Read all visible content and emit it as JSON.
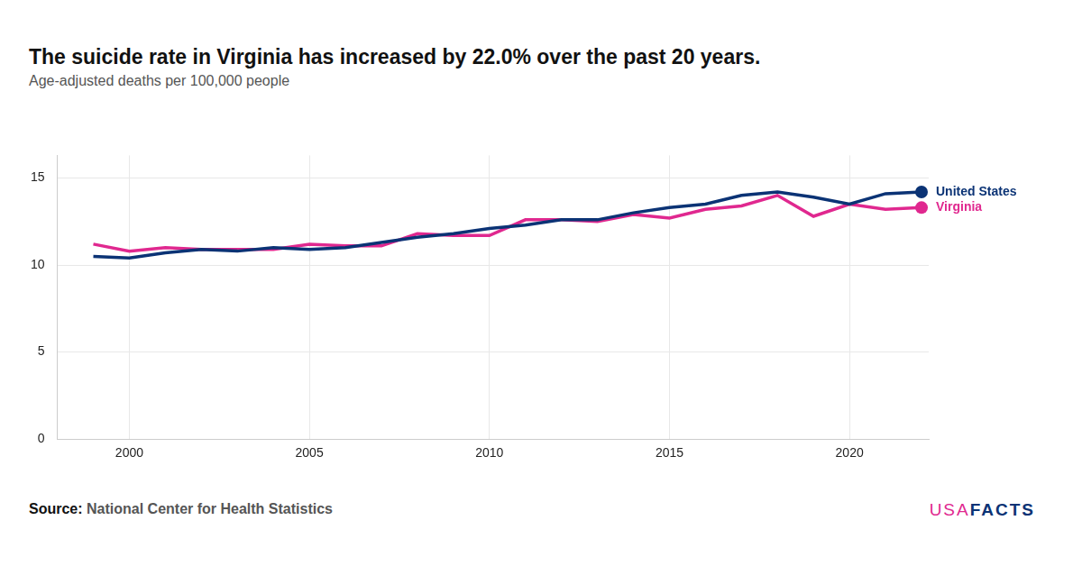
{
  "chart_data": {
    "type": "line",
    "title": "The suicide rate in Virginia has increased by 22.0% over the past 20 years.",
    "subtitle": "Age-adjusted deaths per 100,000 people",
    "source_label": "Source:",
    "source": "National Center for Health Statistics",
    "logo": [
      "USA",
      "FACTS"
    ],
    "x": [
      1999,
      2000,
      2001,
      2002,
      2003,
      2004,
      2005,
      2006,
      2007,
      2008,
      2009,
      2010,
      2011,
      2012,
      2013,
      2014,
      2015,
      2016,
      2017,
      2018,
      2019,
      2020,
      2021,
      2022
    ],
    "series": [
      {
        "name": "United States",
        "color": "#0b3375",
        "values": [
          10.5,
          10.4,
          10.7,
          10.9,
          10.8,
          11.0,
          10.9,
          11.0,
          11.3,
          11.6,
          11.8,
          12.1,
          12.3,
          12.6,
          12.6,
          13.0,
          13.3,
          13.5,
          14.0,
          14.2,
          13.9,
          13.5,
          14.1,
          14.2
        ]
      },
      {
        "name": "Virginia",
        "color": "#e0288f",
        "values": [
          11.2,
          10.8,
          11.0,
          10.9,
          10.9,
          10.9,
          11.2,
          11.1,
          11.1,
          11.8,
          11.7,
          11.7,
          12.6,
          12.6,
          12.5,
          12.9,
          12.7,
          13.2,
          13.4,
          14.0,
          12.8,
          13.5,
          13.2,
          13.3
        ]
      }
    ],
    "xlim": [
      1998,
      2022.2
    ],
    "xticks": [
      2000,
      2005,
      2010,
      2015,
      2020
    ],
    "ylim": [
      0,
      16.3
    ],
    "yticks": [
      0,
      5,
      10,
      15
    ],
    "grid": true
  }
}
